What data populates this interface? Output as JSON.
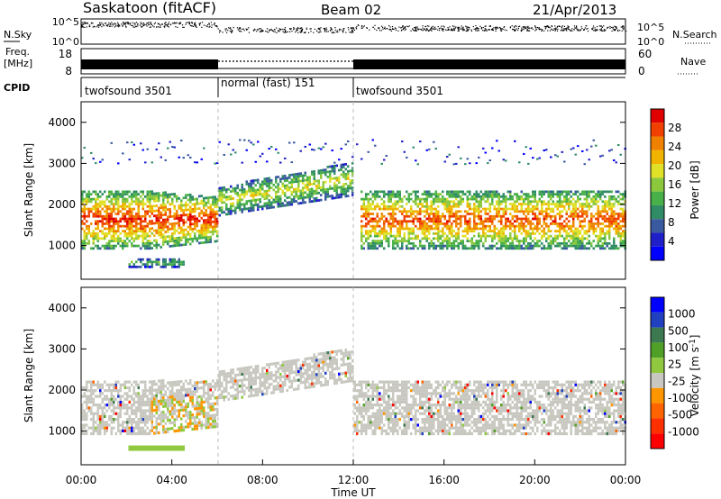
{
  "header": {
    "radar": "Saskatoon (fitACF)",
    "beam": "Beam 02",
    "date": "21/Apr/2013"
  },
  "side_labels": {
    "nsky": "N.Sky",
    "freq_line1": "Freq.",
    "freq_line2": "[MHz]",
    "cpid": "CPID",
    "nsearch": "N.Search",
    "nave": "Nave"
  },
  "colors": {
    "power": [
      "#0000ff",
      "#2020c8",
      "#3a5aa0",
      "#2f8c64",
      "#48b048",
      "#8cc83c",
      "#e0e028",
      "#f0b400",
      "#f08000",
      "#f04000",
      "#e00000"
    ],
    "velocity": [
      "#0000ff",
      "#2040c0",
      "#3c7850",
      "#50a028",
      "#90c840",
      "#c8c8c0",
      "#ff9600",
      "#ff6400",
      "#ff3000",
      "#ff0000"
    ],
    "velocity_ground": "#c8c8c0"
  },
  "chart_data": [
    {
      "type": "line",
      "name": "noise-panel",
      "x_range_hours": [
        0,
        24
      ],
      "left_axis": {
        "label": "N.Sky",
        "ticks": [
          "10^5",
          "10^0"
        ]
      },
      "right_axis": {
        "label": "N.Search",
        "ticks": [
          "10^5",
          "10^0"
        ]
      }
    },
    {
      "type": "line",
      "name": "freq-nave-panel",
      "x_range_hours": [
        0,
        24
      ],
      "left_axis": {
        "label": "Freq. [MHz]",
        "ticks": [
          "18",
          "8"
        ]
      },
      "right_axis": {
        "label": "Nave",
        "ticks": [
          "60",
          "0"
        ]
      }
    },
    {
      "type": "table",
      "name": "cpid-strip",
      "segments": [
        {
          "label": "twofsound 3501",
          "start_h": 0,
          "end_h": 5.98
        },
        {
          "label": "normal (fast) 151",
          "start_h": 5.98,
          "end_h": 12.0
        },
        {
          "label": "twofsound 3501",
          "start_h": 12.0,
          "end_h": 24
        }
      ]
    },
    {
      "type": "heatmap",
      "name": "power",
      "x_range_hours": [
        0,
        24
      ],
      "ylabel": "Slant Range [km]",
      "ylim": [
        180,
        4500
      ],
      "yticks": [
        1000,
        2000,
        3000,
        4000
      ],
      "colorbar": {
        "label": "Power [dB]",
        "ticks": [
          "4",
          "8",
          "12",
          "16",
          "20",
          "24",
          "28"
        ],
        "range": [
          0,
          30
        ]
      },
      "bands": [
        {
          "from_h": 0,
          "to_h": 6,
          "low_km": 900,
          "high_km": 2300,
          "peak_db": 28
        },
        {
          "from_h": 2,
          "to_h": 4.5,
          "low_km": 450,
          "high_km": 650,
          "peak_db": 14
        },
        {
          "from_h": 6,
          "to_h": 12,
          "low_km": 1900,
          "high_km": 2900,
          "peak_db": 18
        },
        {
          "from_h": 12.3,
          "to_h": 24,
          "low_km": 900,
          "high_km": 2300,
          "peak_db": 26
        }
      ]
    },
    {
      "type": "heatmap",
      "name": "velocity",
      "x_range_hours": [
        0,
        24
      ],
      "xlabel": "Time UT",
      "xticks": [
        "00:00",
        "04:00",
        "08:00",
        "12:00",
        "16:00",
        "20:00",
        "00:00"
      ],
      "ylabel": "Slant Range [km]",
      "ylim": [
        180,
        4500
      ],
      "yticks": [
        1000,
        2000,
        3000,
        4000
      ],
      "colorbar": {
        "label": "Velocity [m s^-1]",
        "ticks": [
          "1000",
          "500",
          "100",
          "25",
          "-25",
          "-100",
          "-500",
          "-1000"
        ]
      }
    }
  ]
}
